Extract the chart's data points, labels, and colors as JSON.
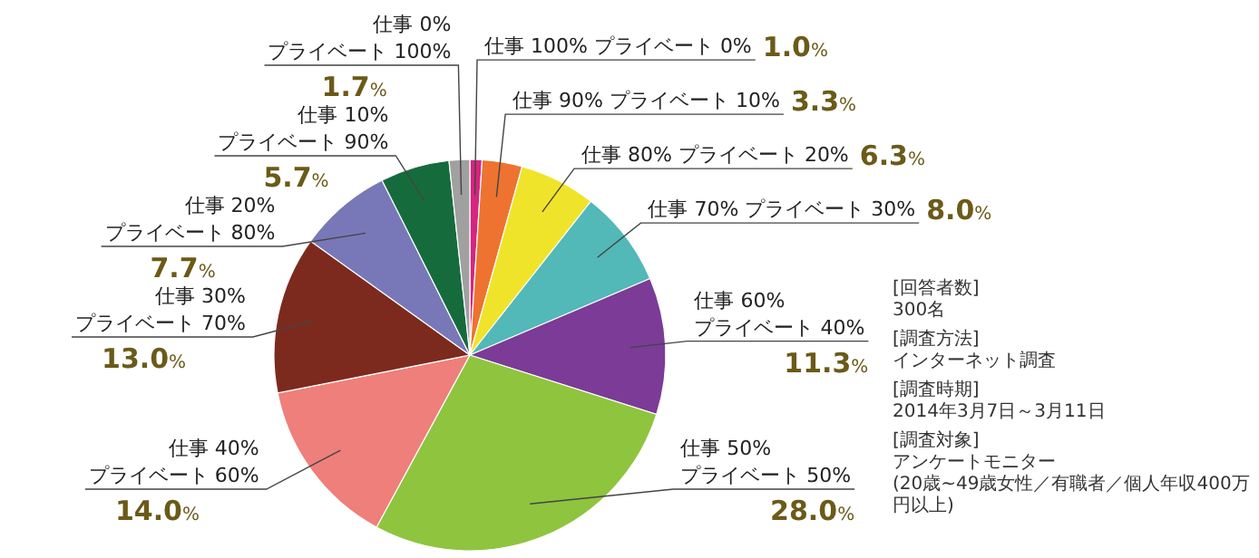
{
  "chart_data": {
    "type": "pie",
    "categories": [
      "仕事 100%  プライベート 0%",
      "仕事 90%  プライベート 10%",
      "仕事 80%  プライベート 20%",
      "仕事 70%  プライベート 30%",
      "仕事 60%\nプライベート 40%",
      "仕事 50%\nプライベート 50%",
      "仕事 40%\nプライベート 60%",
      "仕事 30%\nプライベート 70%",
      "仕事 20%\nプライベート 80%",
      "仕事 10%\nプライベート 90%",
      "仕事 0%\nプライベート 100%"
    ],
    "values": [
      1.0,
      3.3,
      6.3,
      8.0,
      11.3,
      28.0,
      14.0,
      13.0,
      7.7,
      5.7,
      1.7
    ],
    "value_labels": [
      "1.0%",
      "3.3%",
      "6.3%",
      "8.0%",
      "11.3%",
      "28.0%",
      "14.0%",
      "13.0%",
      "7.7%",
      "5.7%",
      "1.7%"
    ],
    "colors": [
      "#d62480",
      "#ee7330",
      "#f0e42a",
      "#52b8b8",
      "#7b3b96",
      "#8fc43f",
      "#ef7f7a",
      "#7d2a1e",
      "#7878b8",
      "#166b3c",
      "#a0a0a0"
    ],
    "annotations": [
      "[回答者数]\n300名",
      "[調査方法]\nインターネット調査",
      "[調査時期]\n2014年3月7日～3月11日",
      "[調査対象]\nアンケートモニター\n(20歳~49歳女性／有職者／個人年収400万円以上)"
    ]
  }
}
